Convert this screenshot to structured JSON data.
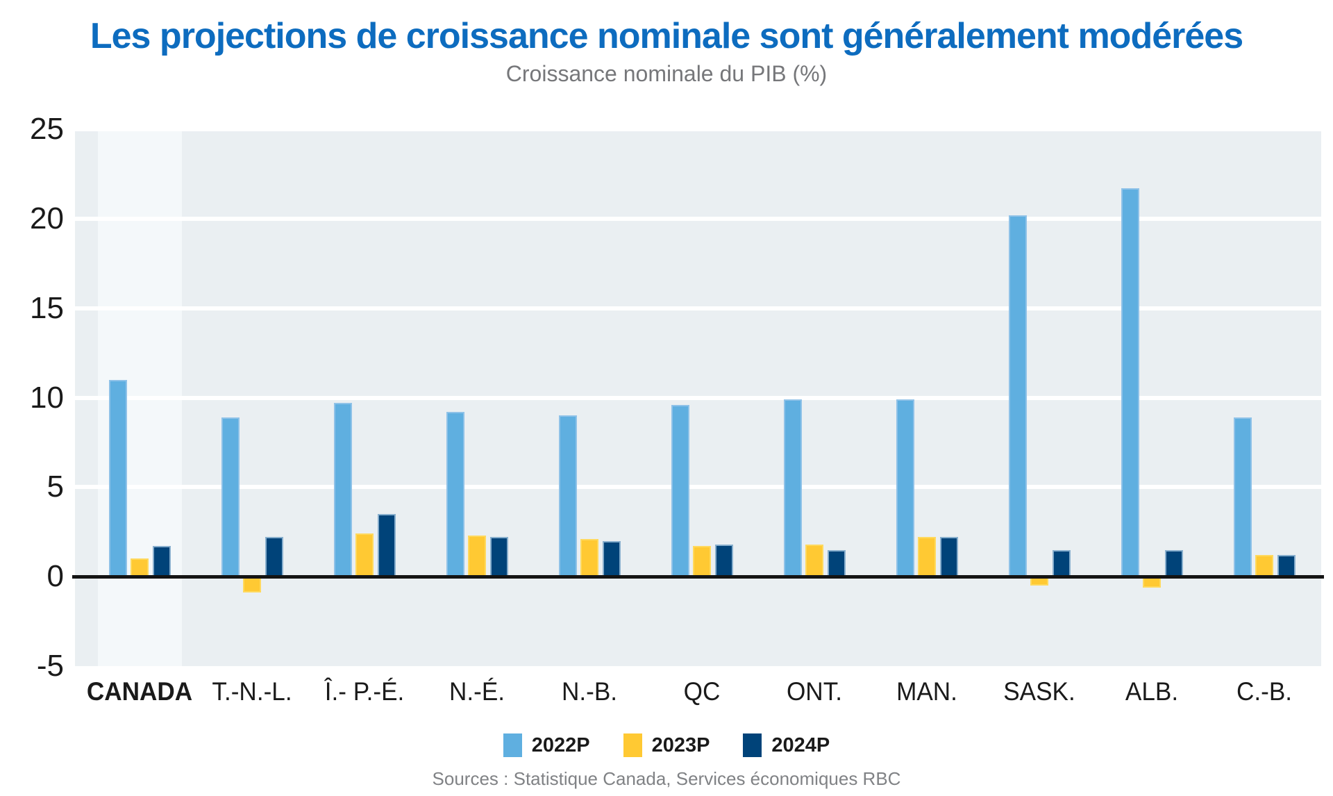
{
  "title": "Les projections de croissance nominale sont généralement modérées",
  "subtitle": "Croissance nominale du PIB (%)",
  "source": "Sources : Statistique Canada, Services économiques RBC",
  "chart_data": {
    "type": "bar",
    "categories": [
      "CANADA",
      "T.-N.-L.",
      "Î.- P.-É.",
      "N.-É.",
      "N.-B.",
      "QC",
      "ONT.",
      "MAN.",
      "SASK.",
      "ALB.",
      "C.-B."
    ],
    "series": [
      {
        "name": "2022P",
        "color": "#5FAFE0",
        "border": "#8FC2E8",
        "values": [
          11.0,
          8.9,
          9.7,
          9.2,
          9.0,
          9.6,
          9.9,
          9.9,
          20.2,
          21.7,
          8.9
        ]
      },
      {
        "name": "2023P",
        "color": "#FFC933",
        "border": "#FFD95E",
        "values": [
          1.0,
          -0.9,
          2.4,
          2.3,
          2.1,
          1.7,
          1.8,
          2.2,
          -0.5,
          -0.6,
          1.2
        ]
      },
      {
        "name": "2024P",
        "color": "#004379",
        "border": "#87AECD",
        "values": [
          1.7,
          2.2,
          3.5,
          2.2,
          2.0,
          1.8,
          1.5,
          2.2,
          1.5,
          1.5,
          1.2
        ]
      }
    ],
    "ylim": [
      -5,
      25
    ],
    "yticks": [
      25,
      20,
      15,
      10,
      5,
      0,
      -5
    ],
    "grid": "horizontal-white",
    "legend_position": "bottom",
    "highlighted_category": "CANADA",
    "xlabel": "",
    "ylabel": ""
  },
  "legend": {
    "items": [
      {
        "label": "2022P",
        "color": "#5FAFE0"
      },
      {
        "label": "2023P",
        "color": "#FFC933"
      },
      {
        "label": "2024P",
        "color": "#004379"
      }
    ]
  },
  "colors": {
    "title": "#0D6CBF",
    "subtitle": "#76777A",
    "source": "#808285",
    "plot_bg": "#EAEFF2",
    "highlight_bg": "#F4F8FA",
    "gridline": "#FFFFFF",
    "axis_line": "#141414",
    "tick_label": "#1A1A1A"
  }
}
